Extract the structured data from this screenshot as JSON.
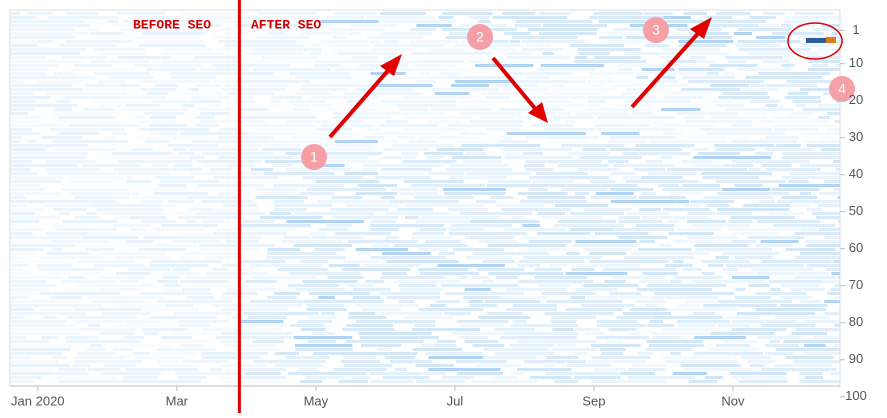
{
  "chart_data": {
    "type": "heatmap",
    "xlim": [
      -0.4,
      11.54
    ],
    "xticks": [
      {
        "value": 0,
        "label": "Jan 2020"
      },
      {
        "value": 2,
        "label": "Mar"
      },
      {
        "value": 4,
        "label": "May"
      },
      {
        "value": 6,
        "label": "Jul"
      },
      {
        "value": 8,
        "label": "Sep"
      },
      {
        "value": 10,
        "label": "Nov"
      }
    ],
    "ylim": [
      -4.5,
      97.1
    ],
    "yticks": [
      1,
      10,
      20,
      30,
      40,
      50,
      60,
      70,
      80,
      90,
      100
    ],
    "divider_x": 2.9,
    "divider_color": "#e00000",
    "annotations": {
      "before": "BEFORE SEO",
      "after": "AFTER SEO",
      "markers": [
        "1",
        "2",
        "3",
        "4"
      ]
    }
  }
}
